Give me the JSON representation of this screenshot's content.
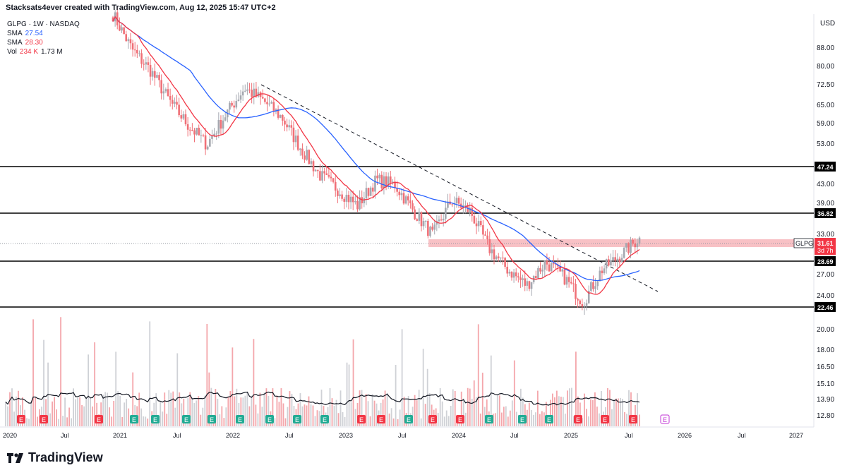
{
  "header": {
    "attribution": "Stacksats4ever created with TradingView.com, Aug 12, 2025 15:47 UTC+2"
  },
  "legend": {
    "symbol_line": "GLPG · 1W · NASDAQ",
    "sma1_label": "SMA",
    "sma1_value": "27.54",
    "sma1_color": "#2962ff",
    "sma2_label": "SMA",
    "sma2_value": "28.30",
    "sma2_color": "#f23645",
    "vol_label": "Vol",
    "vol_value1": "234 K",
    "vol_value2": "1.73 M"
  },
  "price_scale": {
    "currency": "USD",
    "ticks": [
      "88.00",
      "80.00",
      "72.50",
      "65.00",
      "59.00",
      "53.00",
      "43.00",
      "39.00",
      "33.00",
      "27.00",
      "24.00",
      "20.00",
      "18.00",
      "16.50",
      "15.10",
      "13.90",
      "12.80"
    ]
  },
  "labels": {
    "level_47": "47.24",
    "level_36": "36.82",
    "level_28": "28.69",
    "level_22": "22.46",
    "current_symbol": "GLPG",
    "current_price": "31.61",
    "countdown": "3d 7h"
  },
  "time_axis": [
    "2020",
    "Jul",
    "2021",
    "Jul",
    "2022",
    "Jul",
    "2023",
    "Jul",
    "2024",
    "Jul",
    "2025",
    "Jul",
    "2026",
    "Jul",
    "2027"
  ],
  "branding": {
    "name": "TradingView"
  },
  "colors": {
    "up": "#a5a8b0",
    "down": "#f07077",
    "zone": "#f7b6bb",
    "sma_blue": "#2962ff",
    "sma_red": "#f23645"
  },
  "chart_data": {
    "type": "candlestick",
    "symbol": "GLPG",
    "interval": "1W",
    "exchange": "NASDAQ",
    "y_scale": "log",
    "ylim": [
      22,
      95
    ],
    "horizontal_levels": [
      47.24,
      36.82,
      28.69,
      22.46
    ],
    "resistance_zone": [
      30.5,
      32.3
    ],
    "last_price": 31.61,
    "indicators": [
      {
        "name": "SMA",
        "value": 27.54
      },
      {
        "name": "SMA",
        "value": 28.3
      }
    ],
    "volume": {
      "last": "234 K",
      "avg": "1.73 M"
    },
    "approx_closes": [
      {
        "date": "2021-01",
        "close": 95
      },
      {
        "date": "2021-03",
        "close": 80
      },
      {
        "date": "2021-05",
        "close": 72
      },
      {
        "date": "2021-07",
        "close": 62
      },
      {
        "date": "2021-09",
        "close": 55
      },
      {
        "date": "2021-11",
        "close": 50
      },
      {
        "date": "2022-01",
        "close": 58
      },
      {
        "date": "2022-03",
        "close": 66
      },
      {
        "date": "2022-05",
        "close": 62
      },
      {
        "date": "2022-07",
        "close": 57
      },
      {
        "date": "2022-09",
        "close": 49
      },
      {
        "date": "2022-11",
        "close": 43
      },
      {
        "date": "2023-01",
        "close": 40
      },
      {
        "date": "2023-03",
        "close": 37
      },
      {
        "date": "2023-05",
        "close": 42
      },
      {
        "date": "2023-07",
        "close": 41
      },
      {
        "date": "2023-09",
        "close": 36
      },
      {
        "date": "2023-11",
        "close": 32
      },
      {
        "date": "2024-01",
        "close": 38
      },
      {
        "date": "2024-03",
        "close": 36
      },
      {
        "date": "2024-05",
        "close": 30
      },
      {
        "date": "2024-07",
        "close": 27
      },
      {
        "date": "2024-09",
        "close": 25
      },
      {
        "date": "2024-11",
        "close": 28
      },
      {
        "date": "2025-01",
        "close": 26
      },
      {
        "date": "2025-03",
        "close": 23
      },
      {
        "date": "2025-05",
        "close": 27
      },
      {
        "date": "2025-07",
        "close": 29
      },
      {
        "date": "2025-08",
        "close": 31.61
      }
    ],
    "earnings_markers": [
      "E",
      "E",
      "E",
      "E",
      "E",
      "E",
      "E",
      "E",
      "E",
      "E",
      "E",
      "E",
      "E",
      "E",
      "E",
      "E",
      "E",
      "E",
      "E",
      "E",
      "E",
      "E"
    ]
  }
}
